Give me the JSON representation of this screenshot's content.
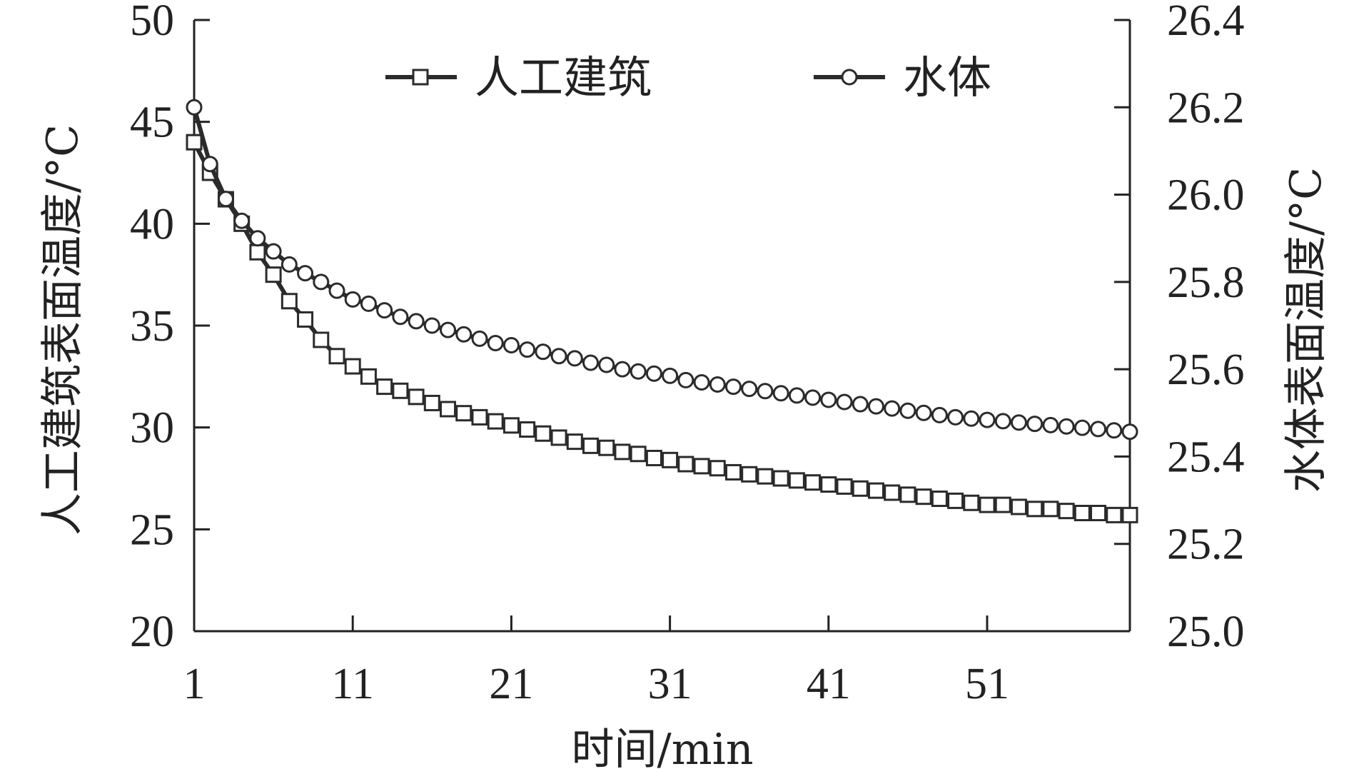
{
  "chart_data": {
    "type": "line",
    "xlabel": "时间/min",
    "ylabel_left": "人工建筑表面温度/°C",
    "ylabel_right": "水体表面温度/°C",
    "xlim": [
      1,
      60
    ],
    "xticks": [
      "1",
      "11",
      "21",
      "31",
      "41",
      "51"
    ],
    "ylim_left": [
      20,
      50
    ],
    "yticks_left": [
      "20",
      "25",
      "30",
      "35",
      "40",
      "45",
      "50"
    ],
    "ylim_right": [
      25.0,
      26.4
    ],
    "yticks_right": [
      "25.0",
      "25.2",
      "25.4",
      "25.6",
      "25.8",
      "26.0",
      "26.2",
      "26.4"
    ],
    "grid": false,
    "legend_position": "top-center",
    "colors": {
      "line": "#2b2b2b",
      "axis": "#222222",
      "marker_fill": "#ffffff"
    },
    "series": [
      {
        "name": "人工建筑",
        "axis": "left",
        "marker": "square",
        "x": [
          1,
          2,
          3,
          4,
          5,
          6,
          7,
          8,
          9,
          10,
          11,
          12,
          13,
          14,
          15,
          16,
          17,
          18,
          19,
          20,
          21,
          22,
          23,
          24,
          25,
          26,
          27,
          28,
          29,
          30,
          31,
          32,
          33,
          34,
          35,
          36,
          37,
          38,
          39,
          40,
          41,
          42,
          43,
          44,
          45,
          46,
          47,
          48,
          49,
          50,
          51,
          52,
          53,
          54,
          55,
          56,
          57,
          58,
          59,
          60
        ],
        "values": [
          44.0,
          42.5,
          41.2,
          40.0,
          38.6,
          37.5,
          36.2,
          35.3,
          34.3,
          33.5,
          33.0,
          32.5,
          32.0,
          31.8,
          31.5,
          31.2,
          30.9,
          30.7,
          30.5,
          30.3,
          30.1,
          29.9,
          29.7,
          29.5,
          29.3,
          29.1,
          29.0,
          28.8,
          28.7,
          28.5,
          28.4,
          28.2,
          28.1,
          28.0,
          27.8,
          27.7,
          27.6,
          27.5,
          27.4,
          27.3,
          27.2,
          27.1,
          27.0,
          26.9,
          26.8,
          26.7,
          26.6,
          26.5,
          26.4,
          26.3,
          26.2,
          26.2,
          26.1,
          26.0,
          26.0,
          25.9,
          25.8,
          25.8,
          25.7,
          25.7
        ]
      },
      {
        "name": "水体",
        "axis": "right",
        "marker": "circle",
        "x": [
          1,
          2,
          3,
          4,
          5,
          6,
          7,
          8,
          9,
          10,
          11,
          12,
          13,
          14,
          15,
          16,
          17,
          18,
          19,
          20,
          21,
          22,
          23,
          24,
          25,
          26,
          27,
          28,
          29,
          30,
          31,
          32,
          33,
          34,
          35,
          36,
          37,
          38,
          39,
          40,
          41,
          42,
          43,
          44,
          45,
          46,
          47,
          48,
          49,
          50,
          51,
          52,
          53,
          54,
          55,
          56,
          57,
          58,
          59,
          60
        ],
        "values": [
          26.2,
          26.07,
          25.99,
          25.94,
          25.9,
          25.87,
          25.84,
          25.82,
          25.8,
          25.78,
          25.76,
          25.75,
          25.735,
          25.72,
          25.71,
          25.7,
          25.69,
          25.68,
          25.67,
          25.66,
          25.655,
          25.645,
          25.64,
          25.63,
          25.625,
          25.615,
          25.61,
          25.6,
          25.595,
          25.59,
          25.585,
          25.575,
          25.57,
          25.565,
          25.56,
          25.555,
          25.55,
          25.545,
          25.54,
          25.535,
          25.53,
          25.525,
          25.52,
          25.515,
          25.51,
          25.505,
          25.5,
          25.495,
          25.49,
          25.487,
          25.484,
          25.481,
          25.478,
          25.475,
          25.472,
          25.469,
          25.466,
          25.463,
          25.46,
          25.457
        ]
      }
    ]
  }
}
